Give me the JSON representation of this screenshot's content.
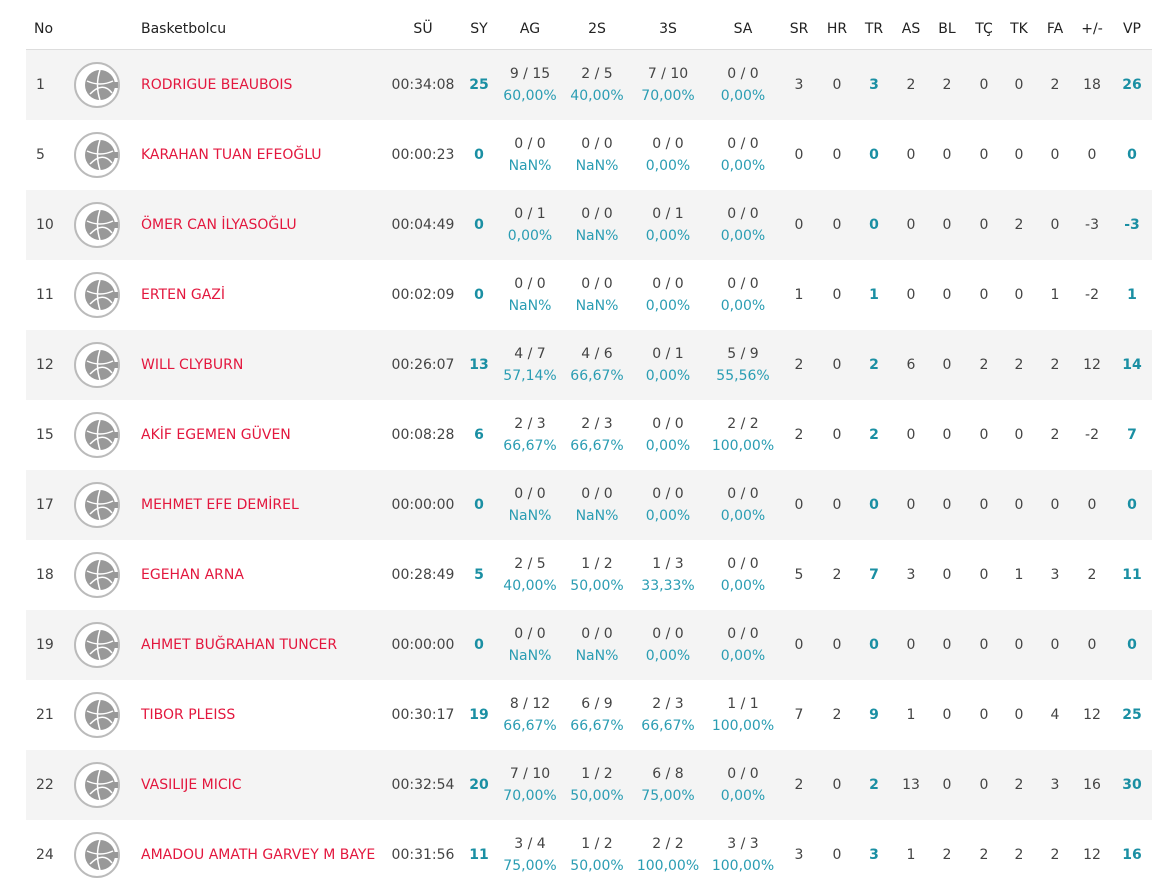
{
  "table": {
    "headers": [
      "No",
      "Basketbolcu",
      "SÜ",
      "SY",
      "AG",
      "2S",
      "3S",
      "SA",
      "SR",
      "HR",
      "TR",
      "AS",
      "BL",
      "TÇ",
      "TK",
      "FA",
      "+/-",
      "VP"
    ],
    "rows": [
      {
        "no": "1",
        "player": "RODRIGUE BEAUBOIS",
        "time": "00:34:08",
        "pts": "25",
        "shots": [
          [
            "9 / 15",
            "60,00%"
          ],
          [
            "2 / 5",
            "40,00%"
          ],
          [
            "7 / 10",
            "70,00%"
          ],
          [
            "0 / 0",
            "0,00%"
          ]
        ],
        "stats": [
          "3",
          "0",
          "3",
          "2",
          "2",
          "0",
          "0",
          "2",
          "18",
          "26"
        ]
      },
      {
        "no": "5",
        "player": "KARAHAN TUAN EFEOĞLU",
        "time": "00:00:23",
        "pts": "0",
        "shots": [
          [
            "0 / 0",
            "NaN%"
          ],
          [
            "0 / 0",
            "NaN%"
          ],
          [
            "0 / 0",
            "0,00%"
          ],
          [
            "0 / 0",
            "0,00%"
          ]
        ],
        "stats": [
          "0",
          "0",
          "0",
          "0",
          "0",
          "0",
          "0",
          "0",
          "0",
          "0"
        ]
      },
      {
        "no": "10",
        "player": "ÖMER CAN İLYASOĞLU",
        "time": "00:04:49",
        "pts": "0",
        "shots": [
          [
            "0 / 1",
            "0,00%"
          ],
          [
            "0 / 0",
            "NaN%"
          ],
          [
            "0 / 1",
            "0,00%"
          ],
          [
            "0 / 0",
            "0,00%"
          ]
        ],
        "stats": [
          "0",
          "0",
          "0",
          "0",
          "0",
          "0",
          "2",
          "0",
          "-3",
          "-3"
        ]
      },
      {
        "no": "11",
        "player": "ERTEN GAZİ",
        "time": "00:02:09",
        "pts": "0",
        "shots": [
          [
            "0 / 0",
            "NaN%"
          ],
          [
            "0 / 0",
            "NaN%"
          ],
          [
            "0 / 0",
            "0,00%"
          ],
          [
            "0 / 0",
            "0,00%"
          ]
        ],
        "stats": [
          "1",
          "0",
          "1",
          "0",
          "0",
          "0",
          "0",
          "1",
          "-2",
          "1"
        ]
      },
      {
        "no": "12",
        "player": "WILL CLYBURN",
        "time": "00:26:07",
        "pts": "13",
        "shots": [
          [
            "4 / 7",
            "57,14%"
          ],
          [
            "4 / 6",
            "66,67%"
          ],
          [
            "0 / 1",
            "0,00%"
          ],
          [
            "5 / 9",
            "55,56%"
          ]
        ],
        "stats": [
          "2",
          "0",
          "2",
          "6",
          "0",
          "2",
          "2",
          "2",
          "12",
          "14"
        ]
      },
      {
        "no": "15",
        "player": "AKİF EGEMEN GÜVEN",
        "time": "00:08:28",
        "pts": "6",
        "shots": [
          [
            "2 / 3",
            "66,67%"
          ],
          [
            "2 / 3",
            "66,67%"
          ],
          [
            "0 / 0",
            "0,00%"
          ],
          [
            "2 / 2",
            "100,00%"
          ]
        ],
        "stats": [
          "2",
          "0",
          "2",
          "0",
          "0",
          "0",
          "0",
          "2",
          "-2",
          "7"
        ]
      },
      {
        "no": "17",
        "player": "MEHMET EFE DEMİREL",
        "time": "00:00:00",
        "pts": "0",
        "shots": [
          [
            "0 / 0",
            "NaN%"
          ],
          [
            "0 / 0",
            "NaN%"
          ],
          [
            "0 / 0",
            "0,00%"
          ],
          [
            "0 / 0",
            "0,00%"
          ]
        ],
        "stats": [
          "0",
          "0",
          "0",
          "0",
          "0",
          "0",
          "0",
          "0",
          "0",
          "0"
        ]
      },
      {
        "no": "18",
        "player": "EGEHAN ARNA",
        "time": "00:28:49",
        "pts": "5",
        "shots": [
          [
            "2 / 5",
            "40,00%"
          ],
          [
            "1 / 2",
            "50,00%"
          ],
          [
            "1 / 3",
            "33,33%"
          ],
          [
            "0 / 0",
            "0,00%"
          ]
        ],
        "stats": [
          "5",
          "2",
          "7",
          "3",
          "0",
          "0",
          "1",
          "3",
          "2",
          "11"
        ]
      },
      {
        "no": "19",
        "player": "AHMET BUĞRAHAN TUNCER",
        "time": "00:00:00",
        "pts": "0",
        "shots": [
          [
            "0 / 0",
            "NaN%"
          ],
          [
            "0 / 0",
            "NaN%"
          ],
          [
            "0 / 0",
            "0,00%"
          ],
          [
            "0 / 0",
            "0,00%"
          ]
        ],
        "stats": [
          "0",
          "0",
          "0",
          "0",
          "0",
          "0",
          "0",
          "0",
          "0",
          "0"
        ]
      },
      {
        "no": "21",
        "player": "TIBOR PLEISS",
        "time": "00:30:17",
        "pts": "19",
        "shots": [
          [
            "8 / 12",
            "66,67%"
          ],
          [
            "6 / 9",
            "66,67%"
          ],
          [
            "2 / 3",
            "66,67%"
          ],
          [
            "1 / 1",
            "100,00%"
          ]
        ],
        "stats": [
          "7",
          "2",
          "9",
          "1",
          "0",
          "0",
          "0",
          "4",
          "12",
          "25"
        ]
      },
      {
        "no": "22",
        "player": "VASILIJE MICIC",
        "time": "00:32:54",
        "pts": "20",
        "shots": [
          [
            "7 / 10",
            "70,00%"
          ],
          [
            "1 / 2",
            "50,00%"
          ],
          [
            "6 / 8",
            "75,00%"
          ],
          [
            "0 / 0",
            "0,00%"
          ]
        ],
        "stats": [
          "2",
          "0",
          "2",
          "13",
          "0",
          "0",
          "2",
          "3",
          "16",
          "30"
        ]
      },
      {
        "no": "24",
        "player": "AMADOU AMATH GARVEY M BAYE",
        "time": "00:31:56",
        "pts": "11",
        "shots": [
          [
            "3 / 4",
            "75,00%"
          ],
          [
            "1 / 2",
            "50,00%"
          ],
          [
            "2 / 2",
            "100,00%"
          ],
          [
            "3 / 3",
            "100,00%"
          ]
        ],
        "stats": [
          "3",
          "0",
          "3",
          "1",
          "2",
          "2",
          "2",
          "2",
          "12",
          "16"
        ]
      }
    ]
  }
}
